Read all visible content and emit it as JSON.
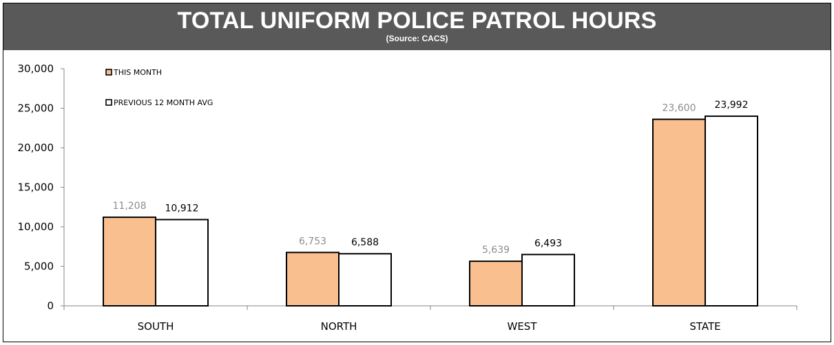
{
  "header": {
    "title": "TOTAL UNIFORM POLICE PATROL HOURS",
    "subtitle": "(Source: CACS)"
  },
  "colors": {
    "header_bg": "#595959",
    "this_month": "#F9BF8F",
    "previous_avg": "#FFFFFF",
    "month_label": "#8C8C8C",
    "bar_border": "#000000"
  },
  "chart_data": {
    "type": "bar",
    "title": "TOTAL UNIFORM POLICE PATROL HOURS",
    "subtitle": "(Source: CACS)",
    "categories": [
      "SOUTH",
      "NORTH",
      "WEST",
      "STATE"
    ],
    "series": [
      {
        "name": "THIS MONTH",
        "values": [
          11208,
          6753,
          5639,
          23600
        ],
        "labels": [
          "11,208",
          "6,753",
          "5,639",
          "23,600"
        ]
      },
      {
        "name": "PREVIOUS 12 MONTH AVG",
        "values": [
          10912,
          6588,
          6493,
          23992
        ],
        "labels": [
          "10,912",
          "6,588",
          "6,493",
          "23,992"
        ]
      }
    ],
    "ylim": [
      0,
      30000
    ],
    "yticks": [
      0,
      5000,
      10000,
      15000,
      20000,
      25000,
      30000
    ],
    "ytick_labels": [
      "0",
      "5,000",
      "10,000",
      "15,000",
      "20,000",
      "25,000",
      "30,000"
    ],
    "xlabel": "",
    "ylabel": "",
    "grid": false,
    "legend_position": "top-left"
  }
}
